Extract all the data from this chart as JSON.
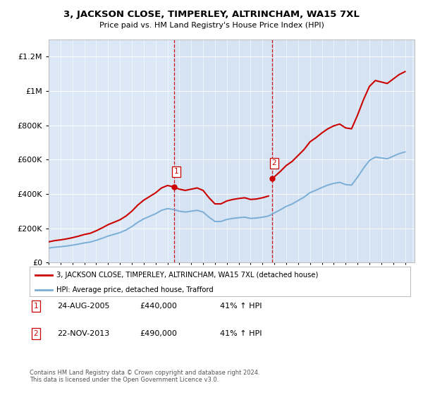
{
  "title": "3, JACKSON CLOSE, TIMPERLEY, ALTRINCHAM, WA15 7XL",
  "subtitle": "Price paid vs. HM Land Registry's House Price Index (HPI)",
  "legend_line1": "3, JACKSON CLOSE, TIMPERLEY, ALTRINCHAM, WA15 7XL (detached house)",
  "legend_line2": "HPI: Average price, detached house, Trafford",
  "house_color": "#cc0000",
  "hpi_color": "#7aaed6",
  "sale1_date": "24-AUG-2005",
  "sale1_price": 440000,
  "sale1_hpi": "41%",
  "sale2_date": "22-NOV-2013",
  "sale2_price": 490000,
  "sale2_hpi": "41%",
  "footnote": "Contains HM Land Registry data © Crown copyright and database right 2024.\nThis data is licensed under the Open Government Licence v3.0.",
  "ylim": [
    0,
    1300000
  ],
  "background_color": "#ffffff",
  "plot_bg_color": "#dce8f5"
}
